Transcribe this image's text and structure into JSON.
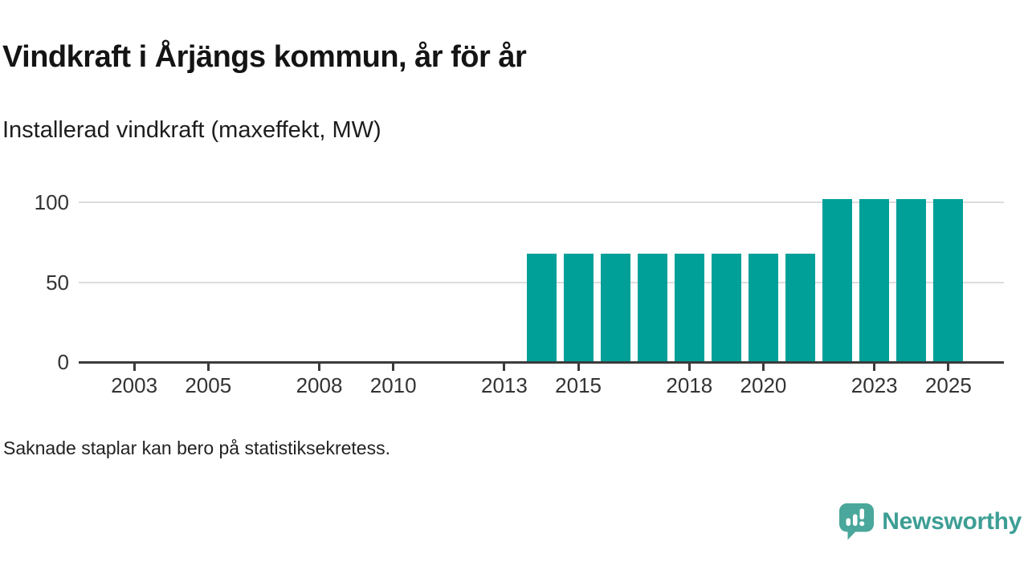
{
  "header": {
    "title": "Vindkraft i Årjängs kommun, år för år",
    "subtitle": "Installerad vindkraft (maxeffekt, MW)"
  },
  "chart_data": {
    "type": "bar",
    "title": "Vindkraft i Årjängs kommun, år för år",
    "subtitle": "Installerad vindkraft (maxeffekt, MW)",
    "unit": "MW",
    "x_domain": [
      2002,
      2026
    ],
    "ylim": [
      0,
      110
    ],
    "y_ticks": [
      0,
      50,
      100
    ],
    "x_ticks": [
      2003,
      2005,
      2008,
      2010,
      2013,
      2015,
      2018,
      2020,
      2023,
      2025
    ],
    "grid": "horizontal-only",
    "legend": "none",
    "bars": [
      {
        "year": 2014,
        "value": 68
      },
      {
        "year": 2015,
        "value": 68
      },
      {
        "year": 2016,
        "value": 68
      },
      {
        "year": 2017,
        "value": 68
      },
      {
        "year": 2018,
        "value": 68
      },
      {
        "year": 2019,
        "value": 68
      },
      {
        "year": 2020,
        "value": 68
      },
      {
        "year": 2021,
        "value": 68
      },
      {
        "year": 2022,
        "value": 102
      },
      {
        "year": 2023,
        "value": 102
      },
      {
        "year": 2024,
        "value": 102
      },
      {
        "year": 2025,
        "value": 102
      }
    ],
    "colors": {
      "bar": "#00a099",
      "gridline": "#dcdcdc",
      "axis": "#3b3b3b",
      "tick_label": "#333333"
    }
  },
  "footnote": "Saknade staplar kan bero på statistiksekretess.",
  "logo": {
    "text": "Newsworthy",
    "icon": "bar-chart-speech-bubble",
    "text_color": "#3d9e94",
    "mark_color": "#4aa79b"
  }
}
